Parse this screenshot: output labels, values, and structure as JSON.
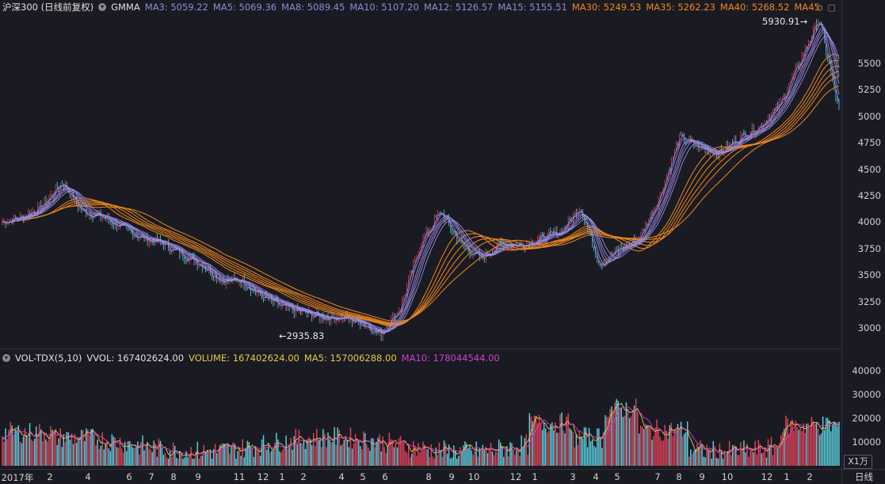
{
  "price_legend": {
    "instrument": "沪深300 (日线前复权)",
    "indicator": "GMMA",
    "items": [
      {
        "label": "MA3: 5059.22",
        "color": "#8c8cd8"
      },
      {
        "label": "MA5: 5069.36",
        "color": "#8c8cd8"
      },
      {
        "label": "MA8: 5089.45",
        "color": "#8c8cd8"
      },
      {
        "label": "MA10: 5107.20",
        "color": "#8c8cd8"
      },
      {
        "label": "MA12: 5126.57",
        "color": "#8c8cd8"
      },
      {
        "label": "MA15: 5155.51",
        "color": "#8c8cd8"
      },
      {
        "label": "MA30: 5249.53",
        "color": "#f0871e"
      },
      {
        "label": "MA35: 5262.23",
        "color": "#f0871e"
      },
      {
        "label": "MA40: 5268.52",
        "color": "#f0871e"
      },
      {
        "label": "MA45:",
        "color": "#f0871e"
      }
    ]
  },
  "vol_legend": {
    "indicator": "VOL-TDX(5,10)",
    "vvol": "VVOL: 167402624.00",
    "volume": "VOLUME: 167402624.00",
    "ma5": "MA5: 157006288.00",
    "ma10": "MA10: 178044544.00",
    "colors": {
      "volume": "#e6c84a",
      "ma5": "#e6c84a",
      "ma10": "#d040d0"
    }
  },
  "price_axis_ticks": [
    "5500",
    "5250",
    "5000",
    "4750",
    "4500",
    "4250",
    "4000",
    "3750",
    "3500",
    "3250",
    "3000"
  ],
  "vol_axis_ticks": [
    "40000",
    "30000",
    "20000",
    "10000"
  ],
  "vol_unit": "X1万",
  "period": "日线",
  "date_labels": [
    "2017年",
    "2",
    "4",
    "6",
    "7",
    "8",
    "9",
    "11",
    "12",
    "1",
    "2",
    "4",
    "5",
    "6",
    "8",
    "9",
    "10",
    "12",
    "1",
    "3",
    "4",
    "5",
    "7",
    "8",
    "9",
    "10",
    "12",
    "1",
    "2"
  ],
  "annotations": {
    "high": "5930.91",
    "low": "2935.83"
  },
  "chart_data": {
    "type": "candlestick",
    "price_range": [
      2800,
      5950
    ],
    "volume_range": [
      0,
      42000
    ],
    "key_points": [
      {
        "label": "high",
        "value": 5930.91
      },
      {
        "label": "low",
        "value": 2935.83
      }
    ],
    "close_path": [
      4000,
      4050,
      4150,
      4380,
      4100,
      4050,
      3950,
      3850,
      3800,
      3700,
      3600,
      3450,
      3450,
      3300,
      3200,
      3150,
      3100,
      3100,
      3050,
      2940,
      3200,
      3800,
      4100,
      3800,
      3650,
      3800,
      3780,
      3850,
      3900,
      4150,
      3600,
      3750,
      3850,
      4250,
      4800,
      4700,
      4650,
      4800,
      4900,
      5100,
      5500,
      5930,
      5050
    ]
  }
}
